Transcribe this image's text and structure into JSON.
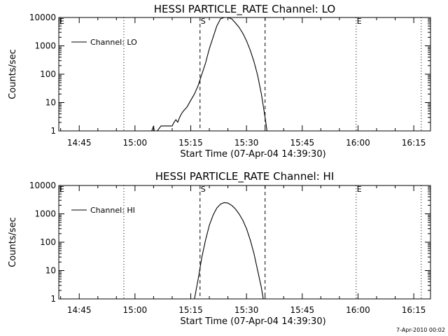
{
  "chart_data": [
    {
      "type": "line",
      "title": "HESSI PARTICLE_RATE Channel: LO",
      "xlabel": "Start Time (07-Apr-04 14:39:30)",
      "ylabel": "Counts/sec",
      "yscale": "log",
      "ylim": [
        1,
        10000
      ],
      "xlim": [
        "14:39:30",
        "16:19:30"
      ],
      "x_ticks": [
        "14:45",
        "15:00",
        "15:15",
        "15:30",
        "15:45",
        "16:00",
        "16:15"
      ],
      "y_ticks": [
        "1",
        "10",
        "100",
        "1000",
        "10000"
      ],
      "legend": {
        "label": "Channel: LO",
        "position": "top-left"
      },
      "markers": [
        {
          "label": "E",
          "time": "14:39:30",
          "style": "dotted"
        },
        {
          "label": "",
          "time": "14:57:00",
          "style": "dotted"
        },
        {
          "label": "S",
          "time": "15:17:30",
          "style": "dashed"
        },
        {
          "label": "",
          "time": "15:35:00",
          "style": "dashed"
        },
        {
          "label": "E",
          "time": "15:59:30",
          "style": "dotted"
        },
        {
          "label": "",
          "time": "16:17:00",
          "style": "dotted"
        }
      ],
      "series": [
        {
          "name": "Channel: LO",
          "points": [
            [
              "15:04:30",
              1
            ],
            [
              "15:05:00",
              1.5
            ],
            [
              "15:05:10",
              1
            ],
            [
              "15:06:00",
              1
            ],
            [
              "15:07:00",
              1.5
            ],
            [
              "15:09:00",
              1.5
            ],
            [
              "15:10:00",
              1.5
            ],
            [
              "15:10:30",
              2
            ],
            [
              "15:11:00",
              2.5
            ],
            [
              "15:11:30",
              2
            ],
            [
              "15:12:00",
              3
            ],
            [
              "15:12:30",
              4
            ],
            [
              "15:13:00",
              5
            ],
            [
              "15:14:00",
              7
            ],
            [
              "15:15:00",
              12
            ],
            [
              "15:16:00",
              20
            ],
            [
              "15:17:00",
              40
            ],
            [
              "15:18:00",
              100
            ],
            [
              "15:19:00",
              250
            ],
            [
              "15:20:00",
              800
            ],
            [
              "15:21:00",
              2000
            ],
            [
              "15:22:00",
              5000
            ],
            [
              "15:23:00",
              9000
            ],
            [
              "15:24:00",
              10000
            ],
            [
              "15:25:00",
              10000
            ],
            [
              "15:26:00",
              9000
            ],
            [
              "15:27:00",
              6500
            ],
            [
              "15:28:00",
              4500
            ],
            [
              "15:29:00",
              2800
            ],
            [
              "15:30:00",
              1500
            ],
            [
              "15:31:00",
              700
            ],
            [
              "15:32:00",
              280
            ],
            [
              "15:33:00",
              90
            ],
            [
              "15:34:00",
              20
            ],
            [
              "15:35:00",
              3
            ],
            [
              "15:35:30",
              1
            ]
          ]
        }
      ]
    },
    {
      "type": "line",
      "title": "HESSI PARTICLE_RATE Channel: HI",
      "xlabel": "Start Time (07-Apr-04 14:39:30)",
      "ylabel": "Counts/sec",
      "yscale": "log",
      "ylim": [
        1,
        10000
      ],
      "xlim": [
        "14:39:30",
        "16:19:30"
      ],
      "x_ticks": [
        "14:45",
        "15:00",
        "15:15",
        "15:30",
        "15:45",
        "16:00",
        "16:15"
      ],
      "y_ticks": [
        "1",
        "10",
        "100",
        "1000",
        "10000"
      ],
      "legend": {
        "label": "Channel: HI",
        "position": "top-left"
      },
      "markers": [
        {
          "label": "E",
          "time": "14:39:30",
          "style": "dotted"
        },
        {
          "label": "",
          "time": "14:57:00",
          "style": "dotted"
        },
        {
          "label": "S",
          "time": "15:17:30",
          "style": "dashed"
        },
        {
          "label": "",
          "time": "15:35:00",
          "style": "dashed"
        },
        {
          "label": "E",
          "time": "15:59:30",
          "style": "dotted"
        },
        {
          "label": "",
          "time": "16:17:00",
          "style": "dotted"
        }
      ],
      "series": [
        {
          "name": "Channel: HI",
          "points": [
            [
              "15:16:00",
              1
            ],
            [
              "15:17:00",
              5
            ],
            [
              "15:18:00",
              30
            ],
            [
              "15:19:00",
              120
            ],
            [
              "15:20:00",
              400
            ],
            [
              "15:21:00",
              900
            ],
            [
              "15:22:00",
              1600
            ],
            [
              "15:23:00",
              2200
            ],
            [
              "15:24:00",
              2500
            ],
            [
              "15:25:00",
              2400
            ],
            [
              "15:26:00",
              2000
            ],
            [
              "15:27:00",
              1500
            ],
            [
              "15:28:00",
              1000
            ],
            [
              "15:29:00",
              600
            ],
            [
              "15:30:00",
              300
            ],
            [
              "15:31:00",
              120
            ],
            [
              "15:32:00",
              40
            ],
            [
              "15:33:00",
              10
            ],
            [
              "15:34:00",
              2.5
            ],
            [
              "15:34:30",
              1
            ]
          ]
        }
      ]
    }
  ],
  "footer": "7-Apr-2010 00:02"
}
